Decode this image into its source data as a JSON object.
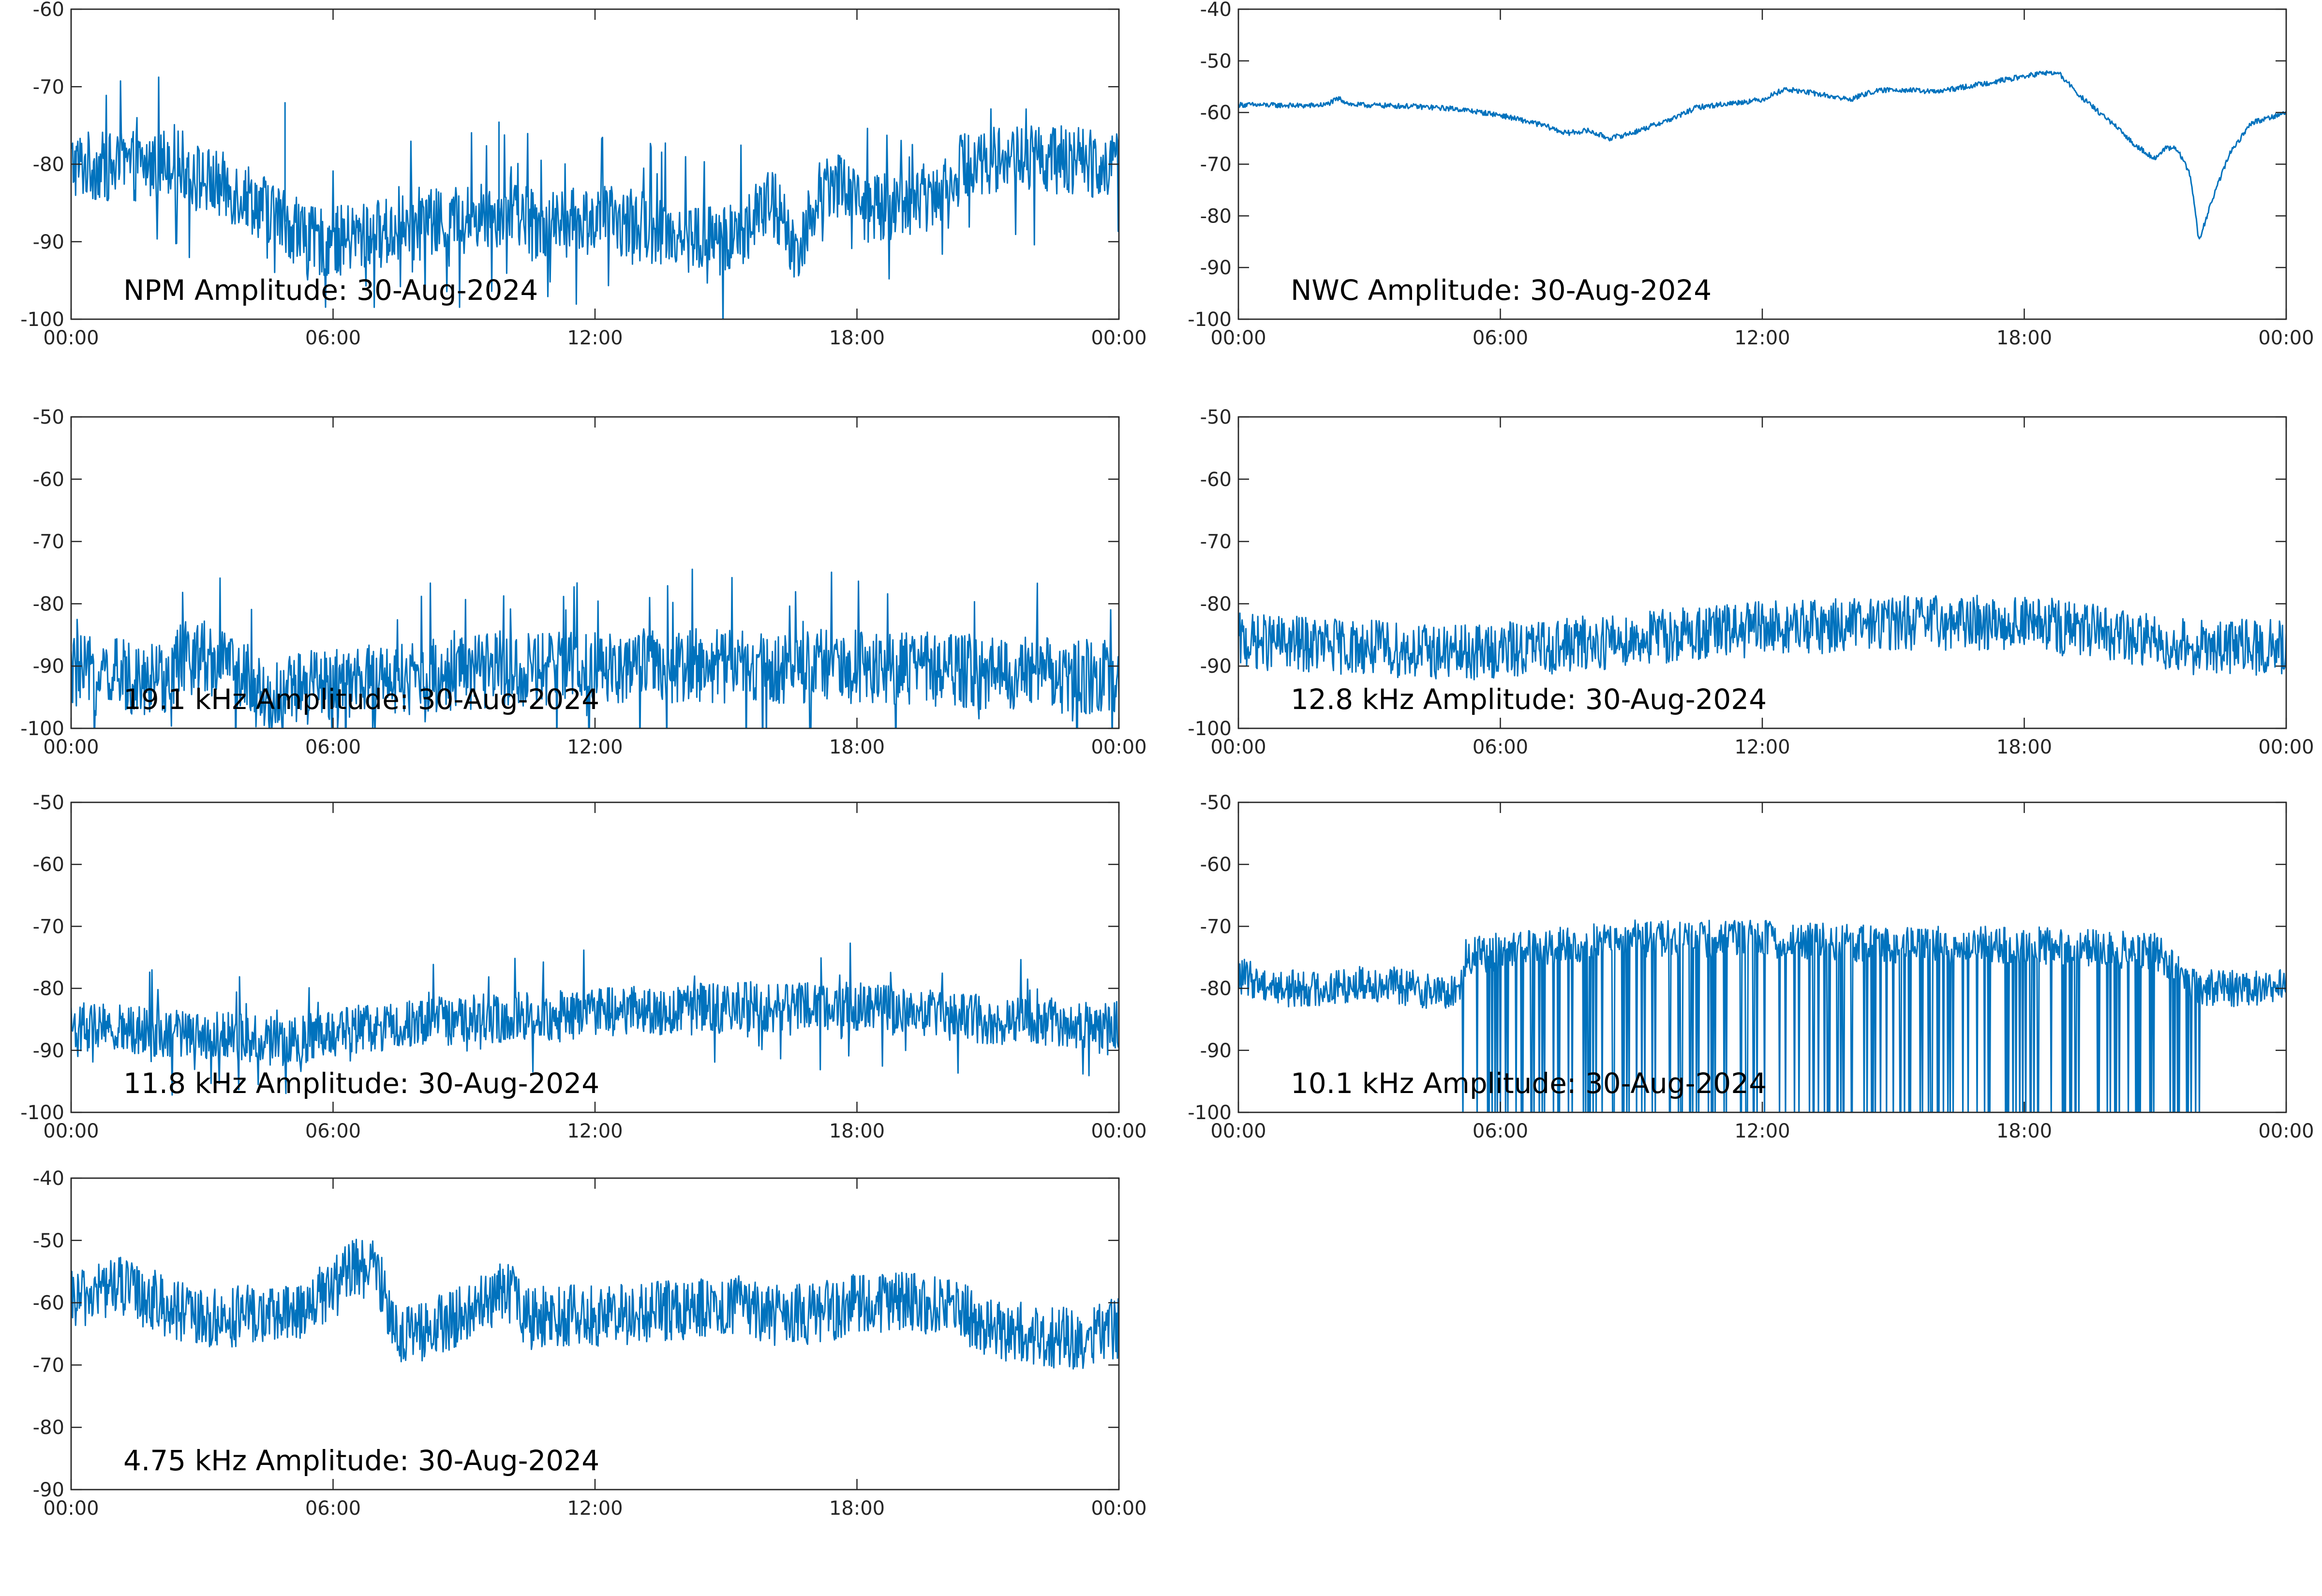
{
  "chart_data": [
    {
      "type": "line",
      "title": "NPM Amplitude: 30-Aug-2024",
      "color": "#0072bd",
      "x_tick_labels": [
        "00:00",
        "06:00",
        "12:00",
        "18:00",
        "00:00"
      ],
      "y_tick_labels": [
        "-60",
        "-70",
        "-80",
        "-90",
        "-100"
      ],
      "ylim": [
        -100,
        -60
      ],
      "xlim_hours": [
        0,
        24
      ],
      "grid": false,
      "noise": 4.5,
      "series": [
        {
          "x": [
            0,
            1,
            2,
            2.3,
            3,
            4,
            4.8,
            5.5,
            6,
            7,
            8,
            9,
            10,
            11,
            12,
            13,
            14,
            15,
            15.5,
            16,
            16.3,
            16.6,
            17,
            17.4,
            17.8,
            18.3,
            19,
            19.7,
            20.5,
            21.5,
            22.5,
            23.5,
            24
          ],
          "values": [
            -80,
            -80.5,
            -80,
            -79,
            -82,
            -84,
            -87,
            -90,
            -90,
            -89,
            -88,
            -87,
            -86,
            -88,
            -87,
            -88,
            -89,
            -90,
            -88,
            -85,
            -87,
            -92,
            -85,
            -82,
            -83,
            -86,
            -85,
            -84,
            -80,
            -79,
            -79.5,
            -79.8,
            -80
          ]
        }
      ],
      "spikes": [
        {
          "x": 4.9,
          "y": -72
        },
        {
          "x": 9.8,
          "y": -74.5
        }
      ]
    },
    {
      "type": "line",
      "title": "NWC Amplitude: 30-Aug-2024",
      "color": "#0072bd",
      "x_tick_labels": [
        "00:00",
        "06:00",
        "12:00",
        "18:00",
        "00:00"
      ],
      "y_tick_labels": [
        "-40",
        "-50",
        "-60",
        "-70",
        "-80",
        "-90",
        "-100"
      ],
      "ylim": [
        -100,
        -40
      ],
      "xlim_hours": [
        0,
        24
      ],
      "grid": false,
      "noise": 0.5,
      "series": [
        {
          "x": [
            0,
            1,
            1.5,
            2,
            2.3,
            2.6,
            4,
            5,
            6,
            7,
            7.5,
            8,
            8.5,
            9,
            10,
            10.5,
            11,
            12,
            12.5,
            13,
            14,
            14.5,
            15,
            16,
            17,
            18,
            18.5,
            18.8,
            19.3,
            20,
            20.5,
            21,
            21.2,
            21.5,
            21.8,
            21.9,
            22,
            22.3,
            22.7,
            23.2,
            24
          ],
          "values": [
            -58.5,
            -58.6,
            -58.7,
            -58.5,
            -57.3,
            -58.5,
            -58.8,
            -59.3,
            -60.5,
            -62.5,
            -64,
            -63.5,
            -65,
            -64,
            -61,
            -59,
            -58.5,
            -57.5,
            -55.5,
            -56,
            -57.5,
            -56,
            -55.5,
            -56,
            -54.5,
            -53,
            -52.3,
            -52.5,
            -57,
            -62,
            -66,
            -69,
            -67,
            -67,
            -72,
            -78,
            -85,
            -77,
            -68,
            -62,
            -60
          ]
        }
      ],
      "spikes": []
    },
    {
      "type": "line",
      "title": "19.1 kHz Amplitude: 30-Aug-2024",
      "color": "#0072bd",
      "x_tick_labels": [
        "00:00",
        "06:00",
        "12:00",
        "18:00",
        "00:00"
      ],
      "y_tick_labels": [
        "-50",
        "-60",
        "-70",
        "-80",
        "-90",
        "-100"
      ],
      "ylim": [
        -100,
        -50
      ],
      "xlim_hours": [
        0,
        24
      ],
      "grid": false,
      "noise": 6,
      "series": [
        {
          "x": [
            0,
            2,
            3,
            4,
            4.5,
            5,
            6,
            9,
            12,
            15,
            18,
            21,
            24
          ],
          "values": [
            -91,
            -92,
            -88,
            -92,
            -96,
            -94,
            -93,
            -91,
            -90,
            -90,
            -90,
            -91,
            -92
          ]
        }
      ],
      "spikes": []
    },
    {
      "type": "line",
      "title": "12.8 kHz Amplitude: 30-Aug-2024",
      "color": "#0072bd",
      "x_tick_labels": [
        "00:00",
        "06:00",
        "12:00",
        "18:00",
        "00:00"
      ],
      "y_tick_labels": [
        "-50",
        "-60",
        "-70",
        "-80",
        "-90",
        "-100"
      ],
      "ylim": [
        -100,
        -50
      ],
      "xlim_hours": [
        0,
        24
      ],
      "grid": false,
      "noise": 4.5,
      "series": [
        {
          "x": [
            0,
            3,
            5,
            7,
            10,
            12,
            15,
            18,
            20,
            22,
            24
          ],
          "values": [
            -86,
            -87,
            -88,
            -87,
            -85,
            -84,
            -83,
            -83,
            -85,
            -87,
            -87
          ]
        }
      ],
      "spikes": []
    },
    {
      "type": "line",
      "title": "11.8 kHz Amplitude: 30-Aug-2024",
      "color": "#0072bd",
      "x_tick_labels": [
        "00:00",
        "06:00",
        "12:00",
        "18:00",
        "00:00"
      ],
      "y_tick_labels": [
        "-50",
        "-60",
        "-70",
        "-80",
        "-90",
        "-100"
      ],
      "ylim": [
        -100,
        -50
      ],
      "xlim_hours": [
        0,
        24
      ],
      "grid": false,
      "noise": 4,
      "series": [
        {
          "x": [
            0,
            2,
            4,
            5,
            6,
            9,
            12,
            15,
            18,
            21,
            24
          ],
          "values": [
            -86,
            -87,
            -88,
            -89,
            -87,
            -85,
            -84,
            -83,
            -83,
            -85,
            -86
          ]
        }
      ],
      "spikes": []
    },
    {
      "type": "line",
      "title": "10.1 kHz Amplitude: 30-Aug-2024",
      "color": "#0072bd",
      "x_tick_labels": [
        "00:00",
        "06:00",
        "12:00",
        "18:00",
        "00:00"
      ],
      "y_tick_labels": [
        "-50",
        "-60",
        "-70",
        "-80",
        "-90",
        "-100"
      ],
      "ylim": [
        -100,
        -50
      ],
      "xlim_hours": [
        0,
        24
      ],
      "grid": false,
      "noise": 3,
      "series": [
        {
          "x": [
            0,
            1,
            2,
            3,
            4,
            5,
            5.2,
            6,
            9,
            12,
            15,
            18,
            21,
            22.1,
            22.5,
            23,
            24
          ],
          "values": [
            -78,
            -80,
            -80,
            -79,
            -80,
            -81,
            -75,
            -74,
            -72,
            -72,
            -73,
            -73,
            -74,
            -80,
            -80,
            -80,
            -80
          ]
        }
      ],
      "spikes": []
    },
    {
      "type": "line",
      "title": "4.75 kHz Amplitude: 30-Aug-2024",
      "color": "#0072bd",
      "x_tick_labels": [
        "00:00",
        "06:00",
        "12:00",
        "18:00",
        "00:00"
      ],
      "y_tick_labels": [
        "-40",
        "-50",
        "-60",
        "-70",
        "-80",
        "-90"
      ],
      "ylim": [
        -90,
        -40
      ],
      "xlim_hours": [
        0,
        24
      ],
      "grid": false,
      "noise": 5,
      "series": [
        {
          "x": [
            0,
            1,
            2,
            3,
            4,
            5,
            6,
            6.5,
            7,
            7.5,
            8,
            9,
            10,
            10.5,
            11,
            12,
            13,
            14,
            15,
            16,
            17,
            18,
            19,
            20,
            21,
            22,
            23,
            24
          ],
          "values": [
            -60,
            -57,
            -60,
            -63,
            -62,
            -62,
            -58,
            -54,
            -55,
            -65,
            -65,
            -62,
            -58,
            -63,
            -62,
            -62,
            -62,
            -61,
            -60,
            -62,
            -62,
            -60,
            -60,
            -60,
            -64,
            -65,
            -66,
            -64
          ]
        }
      ],
      "spikes": []
    }
  ]
}
